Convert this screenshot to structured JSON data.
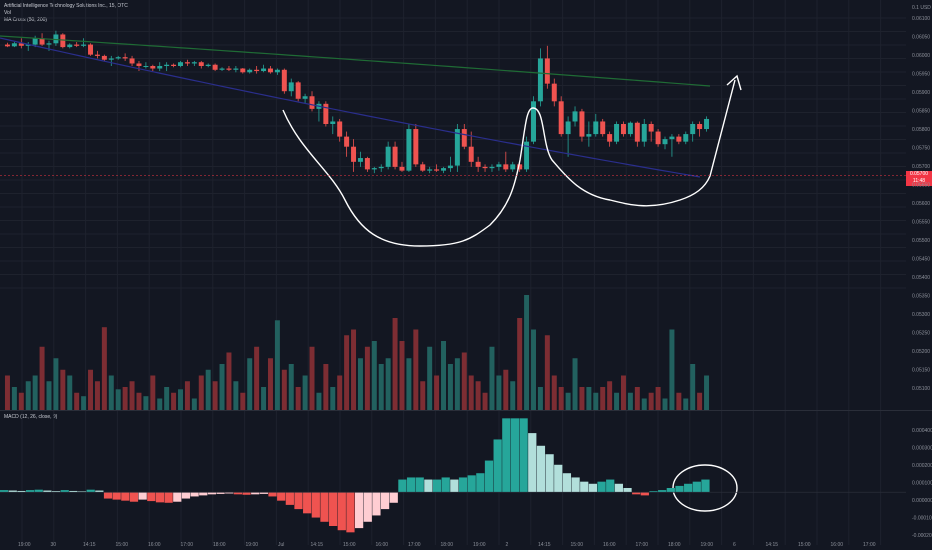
{
  "legend": {
    "title": "Artificial Intelligence Technology Solutions Inc., 15, OTC",
    "volume": "Vol",
    "ma_cross": "MA Cross (50, 200)"
  },
  "macd_legend": "MACD (12, 26, close, 9)",
  "price_tag": {
    "price": "0.05700",
    "countdown": "11:48"
  },
  "colors": {
    "up": "#26a69a",
    "down": "#ef5350",
    "vol_up": "#22615f",
    "vol_down": "#7d2d33",
    "ma50": "#2a2e8c",
    "ma200": "#1f6b35",
    "hist_up_strong": "#26a69a",
    "hist_up_weak": "#b2dfdb",
    "hist_down_strong": "#ef5350",
    "hist_down_weak": "#ffcdd2",
    "annotation": "#ffffff"
  },
  "chart_data": {
    "type": "candlestick",
    "price_ticks": [
      "0.06100",
      "0.06050",
      "0.06000",
      "0.05950",
      "0.05900",
      "0.05850",
      "0.05800",
      "0.05750",
      "0.05700",
      "0.05650",
      "0.05600",
      "0.05550",
      "0.05500",
      "0.05450",
      "0.05400",
      "0.05350",
      "0.05300",
      "0.05250",
      "0.05200",
      "0.05150",
      "0.05100"
    ],
    "top_tick": "0.1 USD",
    "macd_ticks": [
      "0.000400",
      "0.000300",
      "0.000200",
      "0.000100",
      "0.000000",
      "-0.000100",
      "-0.000200"
    ],
    "time_labels": [
      "19:00",
      "30",
      "14:15",
      "15:00",
      "16:00",
      "17:00",
      "18:00",
      "19:00",
      "Jul",
      "14:15",
      "15:00",
      "16:00",
      "17:00",
      "18:00",
      "19:00",
      "2",
      "14:15",
      "15:00",
      "16:00",
      "17:00",
      "18:00",
      "19:00",
      "6",
      "14:15",
      "15:00",
      "16:00",
      "17:00"
    ],
    "price_range": [
      0.05,
      0.0615
    ],
    "candles": [
      [
        0.06005,
        0.06012,
        0.05995,
        0.05998
      ],
      [
        0.05998,
        0.06015,
        0.05995,
        0.0601
      ],
      [
        0.0601,
        0.0603,
        0.0599,
        0.06
      ],
      [
        0.06,
        0.06015,
        0.0598,
        0.06005
      ],
      [
        0.06005,
        0.0604,
        0.05995,
        0.0603
      ],
      [
        0.0603,
        0.0605,
        0.06,
        0.06005
      ],
      [
        0.06005,
        0.0602,
        0.0598,
        0.0601
      ],
      [
        0.0601,
        0.0606,
        0.06,
        0.06045
      ],
      [
        0.06045,
        0.0605,
        0.0599,
        0.05995
      ],
      [
        0.05995,
        0.0601,
        0.0599,
        0.06005
      ],
      [
        0.06005,
        0.06015,
        0.05995,
        0.06
      ],
      [
        0.06,
        0.0603,
        0.05995,
        0.06005
      ],
      [
        0.06005,
        0.0601,
        0.0596,
        0.05965
      ],
      [
        0.05965,
        0.0598,
        0.0595,
        0.0596
      ],
      [
        0.0596,
        0.05965,
        0.0594,
        0.05945
      ],
      [
        0.05945,
        0.0596,
        0.0592,
        0.0595
      ],
      [
        0.0595,
        0.0596,
        0.05945,
        0.05955
      ],
      [
        0.05955,
        0.0597,
        0.0594,
        0.0595
      ],
      [
        0.0595,
        0.0596,
        0.0592,
        0.0593
      ],
      [
        0.0593,
        0.0594,
        0.059,
        0.0592
      ],
      [
        0.0592,
        0.05935,
        0.0591,
        0.0592
      ],
      [
        0.0592,
        0.05925,
        0.059,
        0.0591
      ],
      [
        0.0591,
        0.05935,
        0.059,
        0.0592
      ],
      [
        0.0592,
        0.05935,
        0.059,
        0.05925
      ],
      [
        0.05925,
        0.0593,
        0.05915,
        0.0592
      ],
      [
        0.0592,
        0.0594,
        0.05915,
        0.05935
      ],
      [
        0.05935,
        0.05945,
        0.0592,
        0.0593
      ],
      [
        0.0593,
        0.0594,
        0.0592,
        0.05935
      ],
      [
        0.05935,
        0.0594,
        0.0591,
        0.0592
      ],
      [
        0.0592,
        0.0593,
        0.05915,
        0.05925
      ],
      [
        0.05925,
        0.0593,
        0.059,
        0.05905
      ],
      [
        0.05905,
        0.05915,
        0.059,
        0.0591
      ],
      [
        0.0591,
        0.0592,
        0.059,
        0.05905
      ],
      [
        0.05905,
        0.0592,
        0.05895,
        0.0591
      ],
      [
        0.0591,
        0.05912,
        0.0589,
        0.05895
      ],
      [
        0.05895,
        0.0591,
        0.0589,
        0.05905
      ],
      [
        0.05905,
        0.0592,
        0.0589,
        0.059
      ],
      [
        0.059,
        0.05925,
        0.05895,
        0.0591
      ],
      [
        0.0591,
        0.0592,
        0.0589,
        0.05895
      ],
      [
        0.05895,
        0.0591,
        0.05885,
        0.05905
      ],
      [
        0.05905,
        0.0591,
        0.0581,
        0.0582
      ],
      [
        0.0582,
        0.0587,
        0.058,
        0.05855
      ],
      [
        0.05855,
        0.0586,
        0.0578,
        0.0579
      ],
      [
        0.0579,
        0.0581,
        0.0577,
        0.058
      ],
      [
        0.058,
        0.0582,
        0.0574,
        0.0575
      ],
      [
        0.0575,
        0.0578,
        0.057,
        0.0577
      ],
      [
        0.0577,
        0.0578,
        0.0568,
        0.0569
      ],
      [
        0.0569,
        0.0572,
        0.0565,
        0.057
      ],
      [
        0.057,
        0.0571,
        0.0562,
        0.0564
      ],
      [
        0.0564,
        0.0566,
        0.0556,
        0.056
      ],
      [
        0.056,
        0.0563,
        0.055,
        0.0554
      ],
      [
        0.0554,
        0.0558,
        0.0552,
        0.05555
      ],
      [
        0.05555,
        0.0556,
        0.055,
        0.0551
      ],
      [
        0.0551,
        0.0552,
        0.05495,
        0.05515
      ],
      [
        0.05515,
        0.0553,
        0.055,
        0.0552
      ],
      [
        0.0552,
        0.0562,
        0.0551,
        0.056
      ],
      [
        0.056,
        0.0562,
        0.0551,
        0.0552
      ],
      [
        0.0552,
        0.0554,
        0.055,
        0.05505
      ],
      [
        0.05505,
        0.0569,
        0.055,
        0.0567
      ],
      [
        0.0567,
        0.0569,
        0.0552,
        0.0553
      ],
      [
        0.0553,
        0.0554,
        0.055,
        0.05505
      ],
      [
        0.05505,
        0.0552,
        0.05495,
        0.0551
      ],
      [
        0.0551,
        0.0553,
        0.055,
        0.05505
      ],
      [
        0.05505,
        0.0552,
        0.05495,
        0.05515
      ],
      [
        0.05515,
        0.0556,
        0.055,
        0.05525
      ],
      [
        0.05525,
        0.0569,
        0.055,
        0.0567
      ],
      [
        0.0567,
        0.0569,
        0.0559,
        0.056
      ],
      [
        0.056,
        0.0566,
        0.0552,
        0.0554
      ],
      [
        0.0554,
        0.0556,
        0.055,
        0.0552
      ],
      [
        0.0552,
        0.0553,
        0.055,
        0.05515
      ],
      [
        0.05515,
        0.0553,
        0.055,
        0.0552
      ],
      [
        0.0552,
        0.0554,
        0.05505,
        0.0553
      ],
      [
        0.0553,
        0.0558,
        0.055,
        0.0551
      ],
      [
        0.0551,
        0.0554,
        0.055,
        0.0553
      ],
      [
        0.0553,
        0.0554,
        0.055,
        0.0551
      ],
      [
        0.0551,
        0.0564,
        0.055,
        0.0562
      ],
      [
        0.0562,
        0.058,
        0.0561,
        0.0578
      ],
      [
        0.0578,
        0.0599,
        0.0576,
        0.0595
      ],
      [
        0.0595,
        0.06,
        0.0583,
        0.0585
      ],
      [
        0.0585,
        0.0587,
        0.0576,
        0.0578
      ],
      [
        0.0578,
        0.058,
        0.0564,
        0.0565
      ],
      [
        0.0565,
        0.0572,
        0.0556,
        0.057
      ],
      [
        0.057,
        0.0576,
        0.0568,
        0.0574
      ],
      [
        0.0574,
        0.0575,
        0.0562,
        0.0564
      ],
      [
        0.0564,
        0.057,
        0.056,
        0.0565
      ],
      [
        0.0565,
        0.0573,
        0.0564,
        0.057
      ],
      [
        0.057,
        0.0571,
        0.0564,
        0.0565
      ],
      [
        0.0565,
        0.0566,
        0.056,
        0.0562
      ],
      [
        0.0562,
        0.057,
        0.0561,
        0.0569
      ],
      [
        0.0569,
        0.057,
        0.0564,
        0.0565
      ],
      [
        0.0565,
        0.057,
        0.0564,
        0.05695
      ],
      [
        0.05695,
        0.057,
        0.056,
        0.0562
      ],
      [
        0.0562,
        0.0571,
        0.056,
        0.0569
      ],
      [
        0.0569,
        0.057,
        0.0562,
        0.0566
      ],
      [
        0.0566,
        0.0567,
        0.056,
        0.0561
      ],
      [
        0.0561,
        0.0564,
        0.0559,
        0.0563
      ],
      [
        0.0563,
        0.0565,
        0.0556,
        0.0564
      ],
      [
        0.0564,
        0.0565,
        0.0561,
        0.0562
      ],
      [
        0.0562,
        0.0566,
        0.0561,
        0.0565
      ],
      [
        0.0565,
        0.057,
        0.0562,
        0.0569
      ],
      [
        0.0569,
        0.057,
        0.0564,
        0.0567
      ],
      [
        0.0567,
        0.0572,
        0.0566,
        0.0571
      ]
    ],
    "volumes": [
      0.3,
      0.2,
      0.15,
      0.25,
      0.3,
      0.55,
      0.25,
      0.45,
      0.35,
      0.3,
      0.15,
      0.12,
      0.35,
      0.25,
      0.72,
      0.3,
      0.18,
      0.2,
      0.25,
      0.15,
      0.12,
      0.3,
      0.1,
      0.2,
      0.15,
      0.18,
      0.25,
      0.1,
      0.3,
      0.35,
      0.25,
      0.4,
      0.5,
      0.25,
      0.15,
      0.45,
      0.55,
      0.2,
      0.45,
      0.78,
      0.35,
      0.4,
      0.2,
      0.3,
      0.55,
      0.15,
      0.4,
      0.2,
      0.3,
      0.65,
      0.7,
      0.45,
      0.55,
      0.6,
      0.4,
      0.45,
      0.8,
      0.6,
      0.45,
      0.7,
      0.25,
      0.55,
      0.3,
      0.6,
      0.4,
      0.45,
      0.5,
      0.3,
      0.25,
      0.15,
      0.55,
      0.3,
      0.35,
      0.25,
      0.8,
      1.0,
      0.7,
      0.2,
      0.65,
      0.3,
      0.2,
      0.15,
      0.45,
      0.2,
      0.2,
      0.15,
      0.2,
      0.25,
      0.15,
      0.3,
      0.15,
      0.2,
      0.1,
      0.15,
      0.2,
      0.1,
      0.7,
      0.15,
      0.1,
      0.4,
      0.15,
      0.3
    ],
    "macd_hist": [
      1e-05,
      8e-06,
      6e-06,
      1e-05,
      1.2e-05,
      8e-06,
      5e-06,
      1e-05,
      6e-06,
      4e-06,
      1.2e-05,
      8e-06,
      -3e-05,
      -3.5e-05,
      -4e-05,
      -4.5e-05,
      -3.5e-05,
      -4.2e-05,
      -4.8e-05,
      -5e-05,
      -4.5e-05,
      -3e-05,
      -2e-05,
      -1.5e-05,
      -1e-05,
      -8e-06,
      -6e-06,
      -1e-05,
      -1.2e-05,
      -1e-05,
      -8e-06,
      -2e-05,
      -4e-05,
      -6e-05,
      -8e-05,
      -0.0001,
      -0.00012,
      -0.00014,
      -0.00016,
      -0.00018,
      -0.00019,
      -0.00017,
      -0.00014,
      -0.00011,
      -8e-05,
      -5e-05,
      6e-05,
      7e-05,
      7e-05,
      6e-05,
      6e-05,
      7e-05,
      6e-05,
      7e-05,
      8e-05,
      9e-05,
      0.00015,
      0.00025,
      0.00035,
      0.00035,
      0.00035,
      0.00028,
      0.00022,
      0.00018,
      0.00013,
      9e-05,
      7e-05,
      5e-05,
      4e-05,
      5e-05,
      6e-05,
      4e-05,
      2e-05,
      -1e-05,
      -1.5e-05,
      5e-06,
      1e-05,
      2e-05,
      3e-05,
      4e-05,
      5e-05,
      6e-05
    ],
    "macd_hist_range": [
      -0.00025,
      0.00038
    ]
  },
  "annotation": "hand-drawn cup-and-handle with arrow up"
}
